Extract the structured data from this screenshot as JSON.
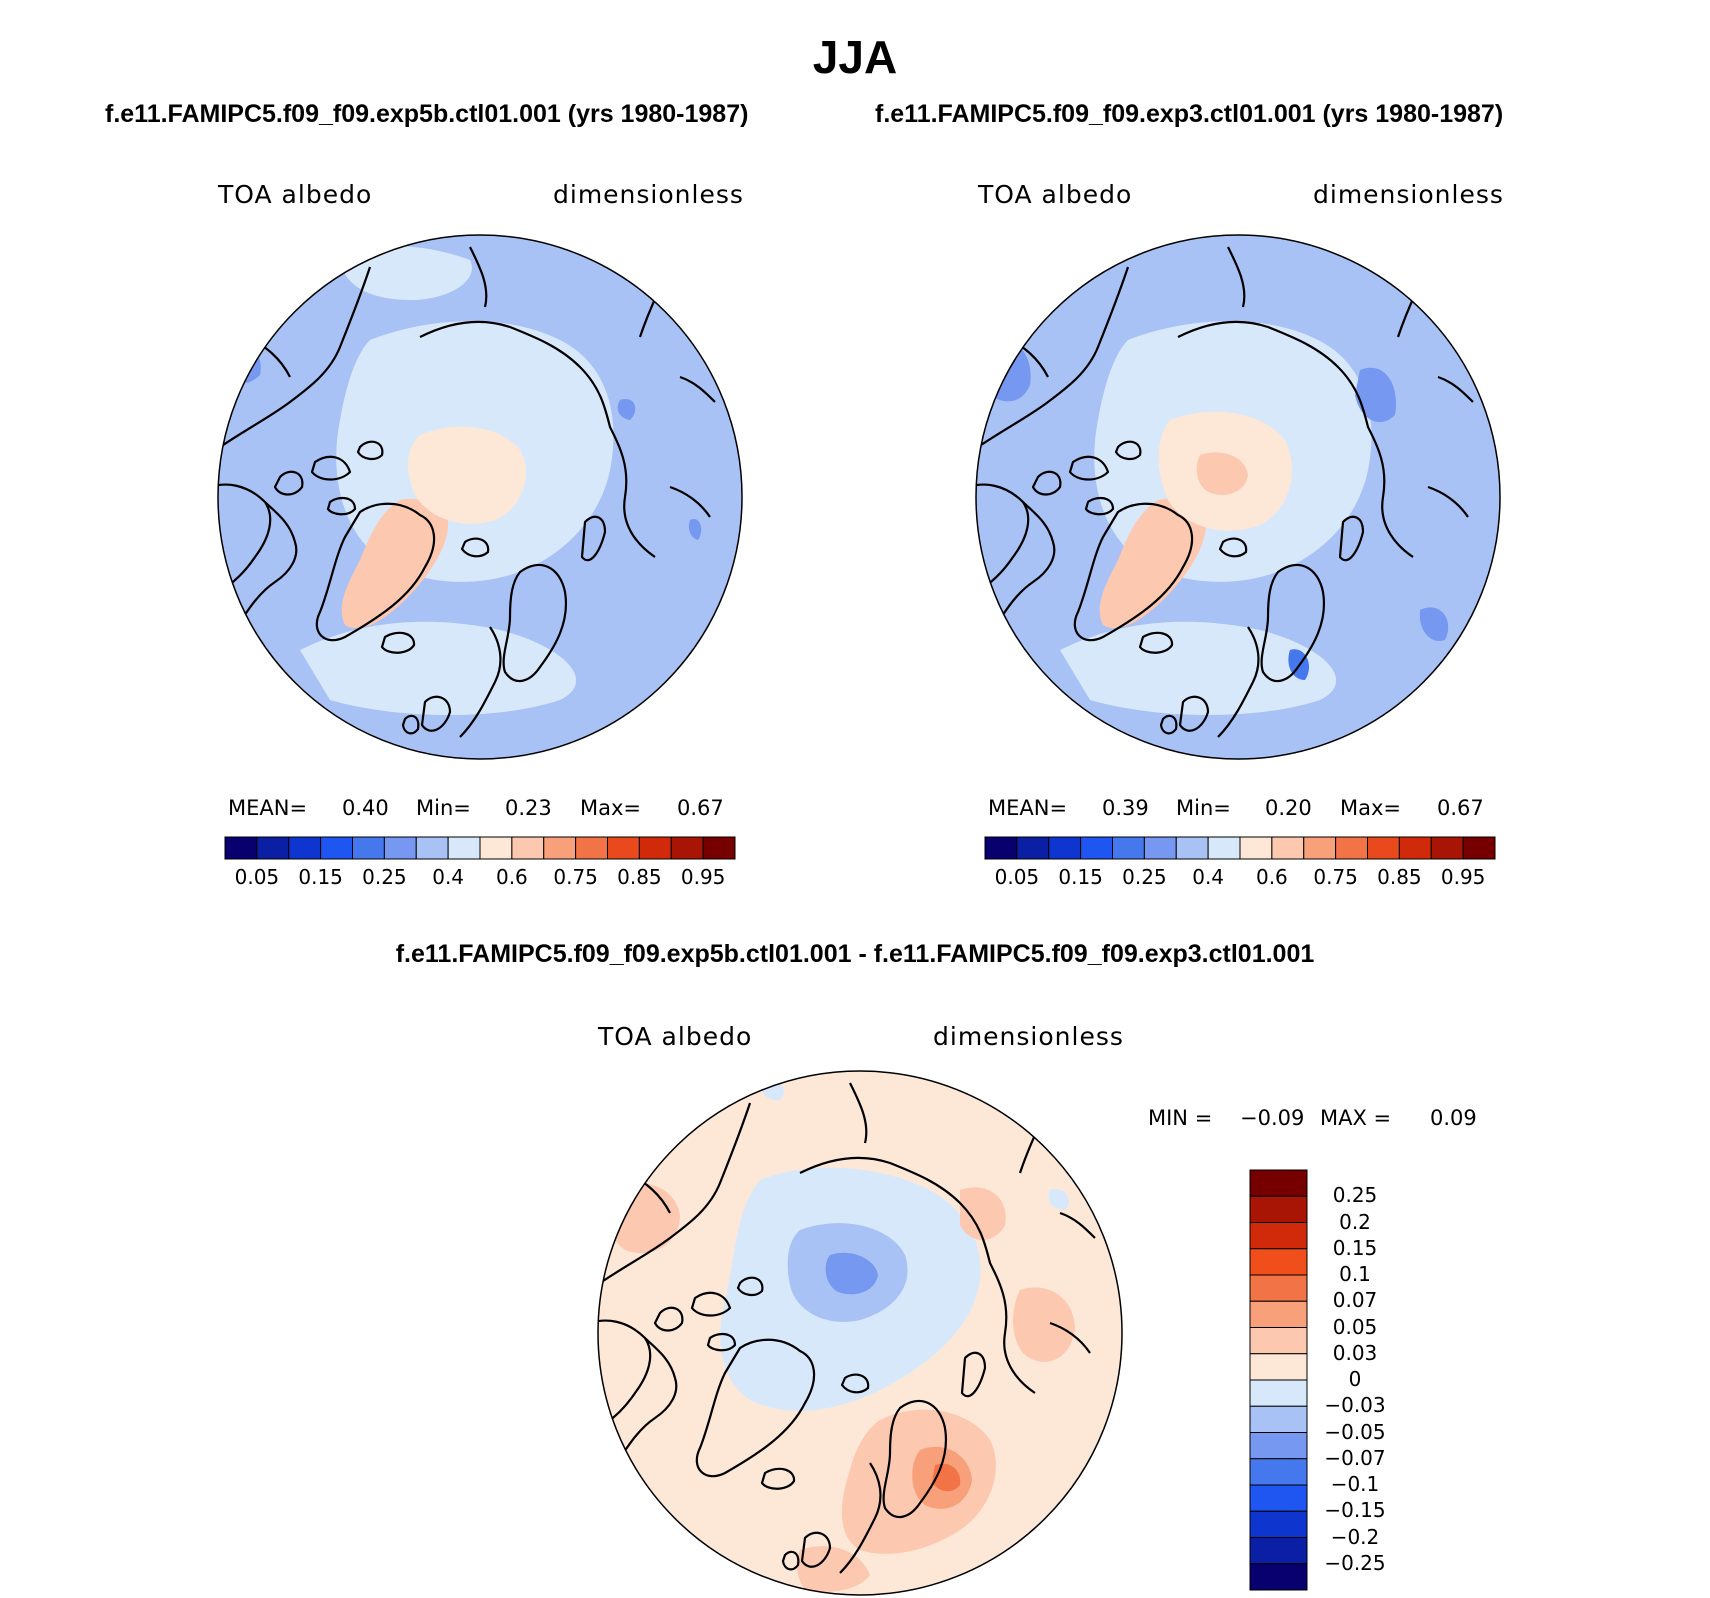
{
  "figure": {
    "title": "JJA",
    "difference_title": "f.e11.FAMIPC5.f09_f09.exp5b.ctl01.001 - f.e11.FAMIPC5.f09_f09.exp3.ctl01.001"
  },
  "panels": [
    {
      "case_title": "f.e11.FAMIPC5.f09_f09.exp5b.ctl01.001 (yrs 1980-1987)",
      "variable": "TOA albedo",
      "units": "dimensionless",
      "mean_label": "MEAN=",
      "mean_value": "0.40",
      "min_label": "Min=",
      "min_value": "0.23",
      "max_label": "Max=",
      "max_value": "0.67"
    },
    {
      "case_title": "f.e11.FAMIPC5.f09_f09.exp3.ctl01.001 (yrs 1980-1987)",
      "variable": "TOA albedo",
      "units": "dimensionless",
      "mean_label": "MEAN=",
      "mean_value": "0.39",
      "min_label": "Min=",
      "min_value": "0.20",
      "max_label": "Max=",
      "max_value": "0.67"
    }
  ],
  "diff_panel": {
    "variable": "TOA albedo",
    "units": "dimensionless",
    "min_label": "MIN =",
    "min_value": "−0.09",
    "max_label": "MAX =",
    "max_value": "0.09"
  },
  "colorbar_abs": {
    "colors": [
      "#08006e",
      "#0a1fa3",
      "#0e36cf",
      "#1f55f0",
      "#4578ed",
      "#7698f0",
      "#a9c2f5",
      "#d8e8fb",
      "#fde8d8",
      "#fcc8b0",
      "#f8a07a",
      "#f27346",
      "#e84a1d",
      "#d12a0b",
      "#a91505",
      "#760000"
    ],
    "tick_labels": [
      "0.05",
      "0.15",
      "0.25",
      "0.4",
      "0.6",
      "0.75",
      "0.85",
      "0.95"
    ]
  },
  "colorbar_diff": {
    "colors": [
      "#760000",
      "#a91505",
      "#d12a0b",
      "#f04e1a",
      "#f27346",
      "#f8a07a",
      "#fcc8b0",
      "#fde8d8",
      "#d8e8fb",
      "#a9c2f5",
      "#7698f0",
      "#4578ed",
      "#1f55f0",
      "#0e36cf",
      "#0a1fa3",
      "#08006e"
    ],
    "tick_labels": [
      "0.25",
      "0.2",
      "0.15",
      "0.1",
      "0.07",
      "0.05",
      "0.03",
      "0",
      "−0.03",
      "−0.05",
      "−0.07",
      "−0.1",
      "−0.15",
      "−0.2",
      "−0.25"
    ]
  },
  "chart_data": [
    {
      "type": "heatmap",
      "projection": "polar stereographic, North Pole",
      "variable": "TOA albedo",
      "units": "dimensionless",
      "mean": 0.4,
      "min": 0.23,
      "max": 0.67,
      "levels": [
        0.05,
        0.1,
        0.15,
        0.2,
        0.25,
        0.3,
        0.4,
        0.5,
        0.6,
        0.7,
        0.75,
        0.8,
        0.85,
        0.9,
        0.95
      ]
    },
    {
      "type": "heatmap",
      "projection": "polar stereographic, North Pole",
      "variable": "TOA albedo",
      "units": "dimensionless",
      "mean": 0.39,
      "min": 0.2,
      "max": 0.67,
      "levels": [
        0.05,
        0.1,
        0.15,
        0.2,
        0.25,
        0.3,
        0.4,
        0.5,
        0.6,
        0.7,
        0.75,
        0.8,
        0.85,
        0.9,
        0.95
      ]
    },
    {
      "type": "heatmap",
      "projection": "polar stereographic, North Pole",
      "variable": "TOA albedo (difference)",
      "units": "dimensionless",
      "min": -0.09,
      "max": 0.09,
      "levels": [
        -0.25,
        -0.2,
        -0.15,
        -0.1,
        -0.07,
        -0.05,
        -0.03,
        0,
        0.03,
        0.05,
        0.07,
        0.1,
        0.15,
        0.2,
        0.25
      ]
    }
  ]
}
